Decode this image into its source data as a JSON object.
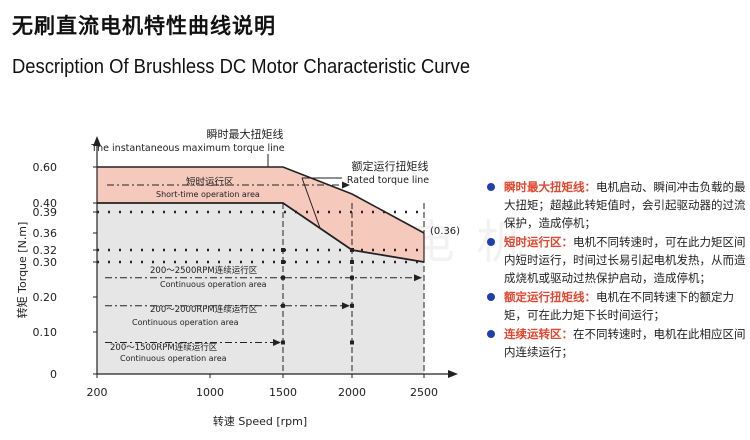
{
  "page": {
    "title_cn": "无刷直流电机特性曲线说明",
    "title_en": "Description Of Brushless DC Motor Characteristic Curve",
    "watermark": "UTTLAN电机"
  },
  "colors": {
    "fill_gray": "#e6e6e6",
    "fill_red": "#f6c9bd",
    "line": "#222222",
    "accent_red": "#e2472f",
    "bullet_blue": "#1f3fb0"
  },
  "chart_data": {
    "type": "area",
    "xlabel": "转速 Speed [rpm]",
    "ylabel": "转矩 Torque [N.m]",
    "x_ticks": [
      "200",
      "1000",
      "1500",
      "2000",
      "2500"
    ],
    "y_ticks": [
      "0",
      "0.10",
      "0.20",
      "0.30",
      "0.32",
      "0.36",
      "0.39",
      "0.40",
      "0.60"
    ],
    "max_torque_line": {
      "label_cn": "瞬时最大扭矩线",
      "label_en": "The instantaneous maximum torque line",
      "points": [
        [
          200,
          0.6
        ],
        [
          1500,
          0.6
        ],
        [
          2000,
          0.45
        ],
        [
          2500,
          0.36
        ]
      ]
    },
    "rated_torque_line": {
      "label_cn": "额定运行扭矩线",
      "label_en": "Rated torque line",
      "points": [
        [
          200,
          0.4
        ],
        [
          1500,
          0.4
        ],
        [
          2000,
          0.32
        ],
        [
          2500,
          0.3
        ]
      ]
    },
    "end_label": "(0.36)",
    "short_time": {
      "label_cn": "短时运行区",
      "label_en": "Short-time operation area",
      "y": 0.5
    },
    "continuous_zones": [
      {
        "label_cn": "200～2500RPM连续运行区",
        "label_en": "Continuous operation area",
        "y": 0.255,
        "x_end": 2500
      },
      {
        "label_cn": "200～2000RPM连续运行区",
        "label_en": "Continuous operation area",
        "y": 0.175,
        "x_end": 2000
      },
      {
        "label_cn": "200～1500RPM连续运行区",
        "label_en": "Continuous operation area",
        "y": 0.075,
        "x_end": 1500
      }
    ],
    "dotted_levels": [
      0.39,
      0.32,
      0.3
    ],
    "grid": false
  },
  "desc": {
    "items": [
      {
        "key": "瞬时最大扭矩线：",
        "text": "电机启动、瞬间冲击负载的最大扭矩；超越此转矩值时，会引起驱动器的过流保护，造成停机；"
      },
      {
        "key": "短时运行区：",
        "text": "电机不同转速时，可在此力矩区间内短时运行，时间过长易引起电机发热，从而造成烧机或驱动过热保护启动，造成停机；"
      },
      {
        "key": "额定运行扭矩线：",
        "text": "电机在不同转速下的额定力矩，可在此力矩下长时间运行；"
      },
      {
        "key": "连续运转区：",
        "text": "在不同转速时，电机在此相应区间内连续运行；"
      }
    ]
  }
}
